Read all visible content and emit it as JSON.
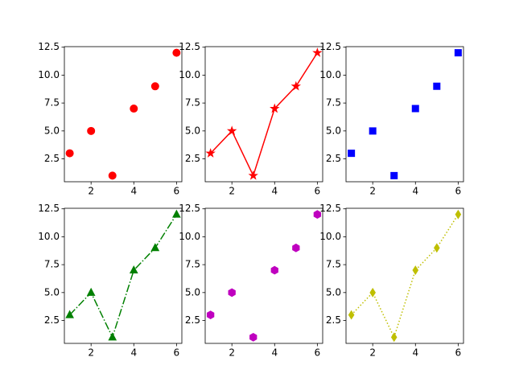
{
  "chart_data": [
    {
      "type": "scatter",
      "x": [
        1,
        2,
        3,
        4,
        5,
        6
      ],
      "values": [
        3,
        5,
        1,
        7,
        9,
        12
      ],
      "color": "#ff0000",
      "marker": "circle",
      "linestyle": "none",
      "xlim": [
        0.75,
        6.25
      ],
      "ylim": [
        0.45,
        12.55
      ],
      "xticks": [
        2,
        4,
        6
      ],
      "yticks": [
        2.5,
        {
          "value": 5,
          "label": "5.0"
        },
        7.5,
        {
          "value": 10,
          "label": "10.0"
        },
        12.5
      ]
    },
    {
      "type": "line",
      "x": [
        1,
        2,
        3,
        4,
        5,
        6
      ],
      "values": [
        3,
        5,
        1,
        7,
        9,
        12
      ],
      "color": "#ff0000",
      "marker": "star",
      "linestyle": "solid",
      "xlim": [
        0.75,
        6.25
      ],
      "ylim": [
        0.45,
        12.55
      ],
      "xticks": [
        2,
        4,
        6
      ],
      "yticks": [
        2.5,
        {
          "value": 5,
          "label": "5.0"
        },
        7.5,
        {
          "value": 10,
          "label": "10.0"
        },
        12.5
      ]
    },
    {
      "type": "scatter",
      "x": [
        1,
        2,
        3,
        4,
        5,
        6
      ],
      "values": [
        3,
        5,
        1,
        7,
        9,
        12
      ],
      "color": "#0000ff",
      "marker": "square",
      "linestyle": "none",
      "xlim": [
        0.75,
        6.25
      ],
      "ylim": [
        0.45,
        12.55
      ],
      "xticks": [
        2,
        4,
        6
      ],
      "yticks": [
        2.5,
        {
          "value": 5,
          "label": "5.0"
        },
        7.5,
        {
          "value": 10,
          "label": "10.0"
        },
        12.5
      ]
    },
    {
      "type": "line",
      "x": [
        1,
        2,
        3,
        4,
        5,
        6
      ],
      "values": [
        3,
        5,
        1,
        7,
        9,
        12
      ],
      "color": "#008000",
      "marker": "triangle",
      "linestyle": "dashdot",
      "xlim": [
        0.75,
        6.25
      ],
      "ylim": [
        0.45,
        12.55
      ],
      "xticks": [
        2,
        4,
        6
      ],
      "yticks": [
        2.5,
        {
          "value": 5,
          "label": "5.0"
        },
        7.5,
        {
          "value": 10,
          "label": "10.0"
        },
        12.5
      ]
    },
    {
      "type": "scatter",
      "x": [
        1,
        2,
        3,
        4,
        5,
        6
      ],
      "values": [
        3,
        5,
        1,
        7,
        9,
        12
      ],
      "color": "#bf00bf",
      "marker": "hexagon",
      "linestyle": "none",
      "xlim": [
        0.75,
        6.25
      ],
      "ylim": [
        0.45,
        12.55
      ],
      "xticks": [
        2,
        4,
        6
      ],
      "yticks": [
        2.5,
        {
          "value": 5,
          "label": "5.0"
        },
        7.5,
        {
          "value": 10,
          "label": "10.0"
        },
        12.5
      ]
    },
    {
      "type": "line",
      "x": [
        1,
        2,
        3,
        4,
        5,
        6
      ],
      "values": [
        3,
        5,
        1,
        7,
        9,
        12
      ],
      "color": "#bfbf00",
      "marker": "diamond",
      "linestyle": "dotted",
      "xlim": [
        0.75,
        6.25
      ],
      "ylim": [
        0.45,
        12.55
      ],
      "xticks": [
        2,
        4,
        6
      ],
      "yticks": [
        2.5,
        {
          "value": 5,
          "label": "5.0"
        },
        7.5,
        {
          "value": 10,
          "label": "10.0"
        },
        12.5
      ]
    }
  ]
}
